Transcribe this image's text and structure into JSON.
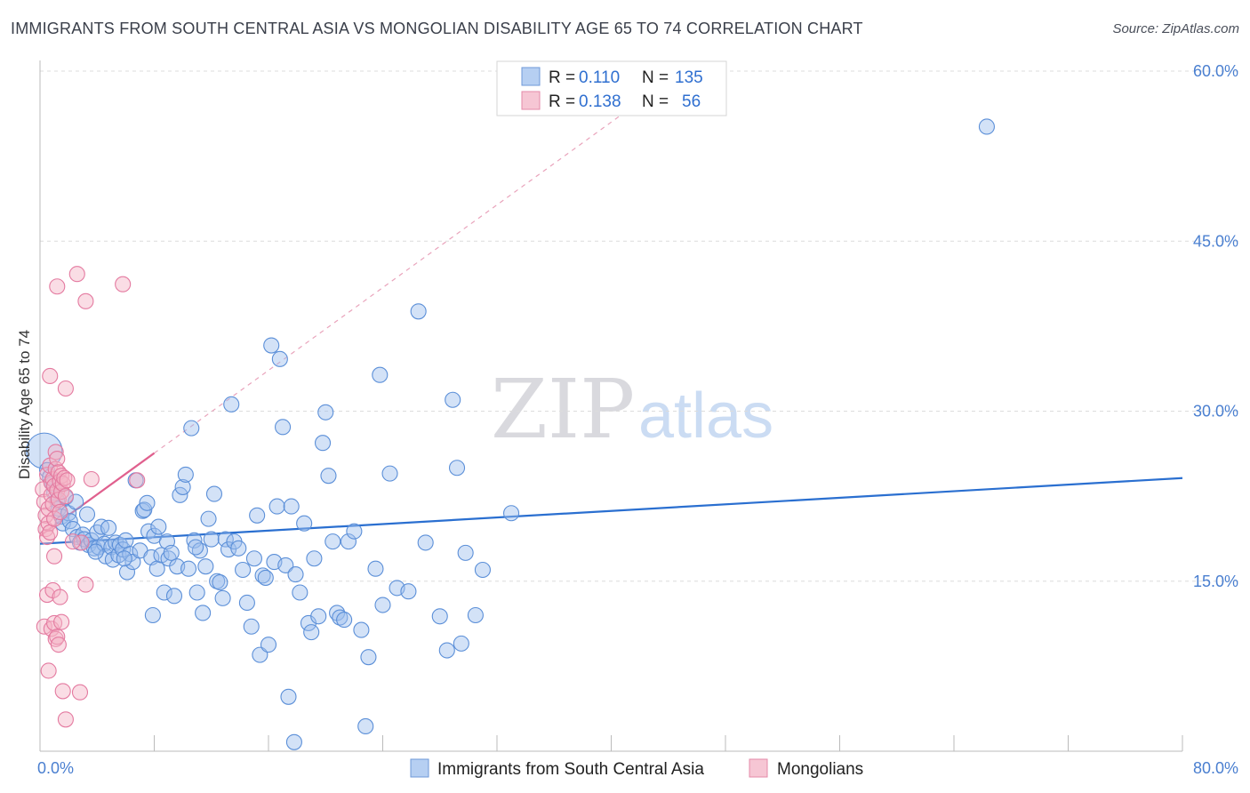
{
  "title": "IMMIGRANTS FROM SOUTH CENTRAL ASIA VS MONGOLIAN DISABILITY AGE 65 TO 74 CORRELATION CHART",
  "source": "Source: ZipAtlas.com",
  "watermark": {
    "zip": "ZIP",
    "atlas": "atlas"
  },
  "legend": {
    "r_label": "R =",
    "n_label": "N =",
    "rows": [
      {
        "r": "0.110",
        "n": "135",
        "color": "#9dbfee"
      },
      {
        "r": "0.138",
        "n": "56",
        "color": "#f3b3c6"
      }
    ]
  },
  "bottom_legend": [
    {
      "label": "Immigrants from South Central Asia",
      "color": "#9dbfee"
    },
    {
      "label": "Mongolians",
      "color": "#f3b3c6"
    }
  ],
  "chart_data": {
    "type": "scatter",
    "ylabel": "Disability Age 65 to 74",
    "xlim": [
      0,
      80
    ],
    "ylim": [
      0,
      60
    ],
    "x_tick_labels": [
      {
        "value": 0,
        "label": "0.0%"
      },
      {
        "value": 80,
        "label": "80.0%"
      }
    ],
    "y_tick_labels": [
      {
        "value": 15,
        "label": "15.0%"
      },
      {
        "value": 30,
        "label": "30.0%"
      },
      {
        "value": 45,
        "label": "45.0%"
      },
      {
        "value": 60,
        "label": "60.0%"
      }
    ],
    "grid": true,
    "legend_position": "top-center",
    "series": [
      {
        "name": "Immigrants from South Central Asia",
        "color": "#9dbfee",
        "stroke": "#5b8fd8",
        "trend": {
          "x": [
            0,
            80
          ],
          "y": [
            18.3,
            24.1
          ],
          "color": "#2a6fd0"
        },
        "points": [
          [
            0.3,
            26.5
          ],
          [
            0.5,
            24.8
          ],
          [
            0.7,
            24.2
          ],
          [
            0.9,
            23.6
          ],
          [
            1.0,
            22.8
          ],
          [
            1.2,
            22.1
          ],
          [
            1.3,
            21.4
          ],
          [
            1.5,
            20.7
          ],
          [
            1.6,
            20.1
          ],
          [
            1.8,
            22.4
          ],
          [
            2.0,
            21.0
          ],
          [
            2.1,
            20.3
          ],
          [
            2.3,
            19.6
          ],
          [
            2.5,
            22.0
          ],
          [
            2.6,
            18.9
          ],
          [
            2.8,
            18.4
          ],
          [
            3.0,
            19.1
          ],
          [
            3.1,
            18.7
          ],
          [
            3.3,
            20.9
          ],
          [
            3.4,
            18.2
          ],
          [
            3.6,
            18.6
          ],
          [
            3.8,
            17.9
          ],
          [
            4.0,
            19.3
          ],
          [
            4.1,
            18.0
          ],
          [
            4.3,
            19.8
          ],
          [
            4.5,
            18.3
          ],
          [
            4.6,
            17.2
          ],
          [
            4.8,
            19.7
          ],
          [
            5.0,
            18.0
          ],
          [
            5.1,
            16.9
          ],
          [
            5.3,
            18.4
          ],
          [
            5.5,
            17.3
          ],
          [
            5.6,
            18.2
          ],
          [
            5.8,
            17.8
          ],
          [
            6.0,
            18.6
          ],
          [
            6.1,
            15.8
          ],
          [
            6.3,
            17.4
          ],
          [
            6.5,
            16.7
          ],
          [
            6.7,
            23.9
          ],
          [
            7.0,
            17.7
          ],
          [
            7.2,
            21.2
          ],
          [
            7.3,
            21.3
          ],
          [
            7.5,
            21.9
          ],
          [
            7.6,
            19.4
          ],
          [
            7.8,
            17.1
          ],
          [
            8.0,
            19.0
          ],
          [
            8.2,
            16.1
          ],
          [
            8.3,
            19.8
          ],
          [
            8.5,
            17.3
          ],
          [
            8.7,
            14.0
          ],
          [
            8.9,
            18.5
          ],
          [
            9.0,
            17.0
          ],
          [
            9.2,
            17.5
          ],
          [
            9.4,
            13.7
          ],
          [
            9.6,
            16.3
          ],
          [
            9.8,
            22.6
          ],
          [
            10.0,
            23.3
          ],
          [
            10.2,
            24.4
          ],
          [
            10.4,
            16.1
          ],
          [
            10.6,
            28.5
          ],
          [
            10.8,
            18.6
          ],
          [
            11.0,
            14.0
          ],
          [
            11.2,
            17.7
          ],
          [
            11.4,
            12.2
          ],
          [
            11.6,
            16.3
          ],
          [
            11.8,
            20.5
          ],
          [
            12.0,
            18.7
          ],
          [
            12.2,
            22.7
          ],
          [
            12.4,
            15.0
          ],
          [
            12.6,
            14.9
          ],
          [
            12.8,
            13.5
          ],
          [
            13.0,
            18.7
          ],
          [
            13.2,
            17.8
          ],
          [
            13.4,
            30.6
          ],
          [
            13.6,
            18.5
          ],
          [
            13.9,
            17.9
          ],
          [
            14.2,
            16.0
          ],
          [
            14.5,
            13.1
          ],
          [
            14.8,
            11.0
          ],
          [
            15.0,
            17.0
          ],
          [
            15.2,
            20.8
          ],
          [
            15.4,
            8.5
          ],
          [
            15.6,
            15.5
          ],
          [
            15.8,
            15.3
          ],
          [
            16.0,
            9.4
          ],
          [
            16.2,
            35.8
          ],
          [
            16.4,
            16.7
          ],
          [
            16.6,
            21.6
          ],
          [
            16.8,
            34.6
          ],
          [
            17.0,
            28.6
          ],
          [
            17.2,
            16.4
          ],
          [
            17.4,
            4.8
          ],
          [
            17.6,
            21.6
          ],
          [
            17.9,
            15.6
          ],
          [
            18.2,
            14.0
          ],
          [
            18.5,
            20.1
          ],
          [
            18.8,
            11.3
          ],
          [
            19.2,
            17.0
          ],
          [
            19.5,
            11.9
          ],
          [
            19.8,
            27.2
          ],
          [
            20.0,
            29.9
          ],
          [
            20.2,
            24.3
          ],
          [
            20.5,
            18.5
          ],
          [
            20.8,
            12.2
          ],
          [
            21.0,
            11.8
          ],
          [
            21.3,
            11.6
          ],
          [
            21.6,
            18.5
          ],
          [
            22.0,
            19.4
          ],
          [
            22.5,
            10.7
          ],
          [
            22.8,
            2.2
          ],
          [
            23.0,
            8.3
          ],
          [
            23.5,
            16.1
          ],
          [
            23.8,
            33.2
          ],
          [
            24.0,
            12.9
          ],
          [
            24.5,
            24.5
          ],
          [
            25.0,
            14.4
          ],
          [
            25.8,
            14.1
          ],
          [
            26.5,
            38.8
          ],
          [
            27.0,
            18.4
          ],
          [
            28.0,
            11.9
          ],
          [
            28.5,
            8.9
          ],
          [
            28.9,
            31.0
          ],
          [
            29.2,
            25.0
          ],
          [
            29.5,
            9.5
          ],
          [
            29.8,
            17.5
          ],
          [
            30.5,
            12.0
          ],
          [
            31.0,
            16.0
          ],
          [
            33.0,
            21.0
          ],
          [
            17.8,
            0.8
          ],
          [
            7.9,
            12.0
          ],
          [
            3.9,
            17.6
          ],
          [
            5.9,
            17.0
          ],
          [
            10.9,
            18.0
          ],
          [
            19.0,
            10.5
          ],
          [
            66.3,
            55.1
          ]
        ]
      },
      {
        "name": "Mongolians",
        "color": "#f3b3c6",
        "stroke": "#e47aa0",
        "trend": {
          "x": [
            0,
            8
          ],
          "y": [
            19.0,
            26.3
          ],
          "color": "#e0608e",
          "extend_to_x": 42
        },
        "points": [
          [
            0.2,
            23.1
          ],
          [
            0.3,
            22.0
          ],
          [
            0.4,
            20.8
          ],
          [
            0.4,
            19.6
          ],
          [
            0.5,
            24.4
          ],
          [
            0.5,
            18.9
          ],
          [
            0.6,
            21.4
          ],
          [
            0.6,
            20.1
          ],
          [
            0.7,
            25.2
          ],
          [
            0.7,
            19.3
          ],
          [
            0.8,
            23.7
          ],
          [
            0.8,
            22.6
          ],
          [
            0.9,
            24.0
          ],
          [
            0.9,
            21.8
          ],
          [
            1.0,
            23.4
          ],
          [
            1.0,
            20.5
          ],
          [
            1.1,
            26.4
          ],
          [
            1.1,
            24.9
          ],
          [
            1.2,
            25.8
          ],
          [
            1.2,
            23.0
          ],
          [
            1.3,
            22.2
          ],
          [
            1.3,
            24.6
          ],
          [
            1.4,
            23.8
          ],
          [
            1.4,
            21.1
          ],
          [
            1.5,
            24.3
          ],
          [
            1.5,
            22.9
          ],
          [
            1.6,
            23.6
          ],
          [
            1.7,
            24.1
          ],
          [
            1.8,
            22.5
          ],
          [
            1.9,
            23.9
          ],
          [
            0.3,
            11.0
          ],
          [
            0.5,
            13.8
          ],
          [
            0.6,
            7.1
          ],
          [
            0.8,
            10.8
          ],
          [
            0.9,
            14.2
          ],
          [
            1.0,
            11.3
          ],
          [
            1.1,
            9.9
          ],
          [
            1.2,
            10.1
          ],
          [
            1.3,
            9.4
          ],
          [
            1.4,
            13.6
          ],
          [
            1.5,
            11.4
          ],
          [
            1.6,
            5.3
          ],
          [
            1.8,
            2.8
          ],
          [
            2.8,
            5.2
          ],
          [
            2.9,
            18.4
          ],
          [
            2.3,
            18.5
          ],
          [
            3.2,
            14.7
          ],
          [
            1.0,
            17.2
          ],
          [
            3.6,
            24.0
          ],
          [
            6.8,
            23.9
          ],
          [
            0.7,
            33.1
          ],
          [
            1.2,
            41.0
          ],
          [
            1.8,
            32.0
          ],
          [
            2.6,
            42.1
          ],
          [
            3.2,
            39.7
          ],
          [
            5.8,
            41.2
          ]
        ]
      }
    ]
  }
}
